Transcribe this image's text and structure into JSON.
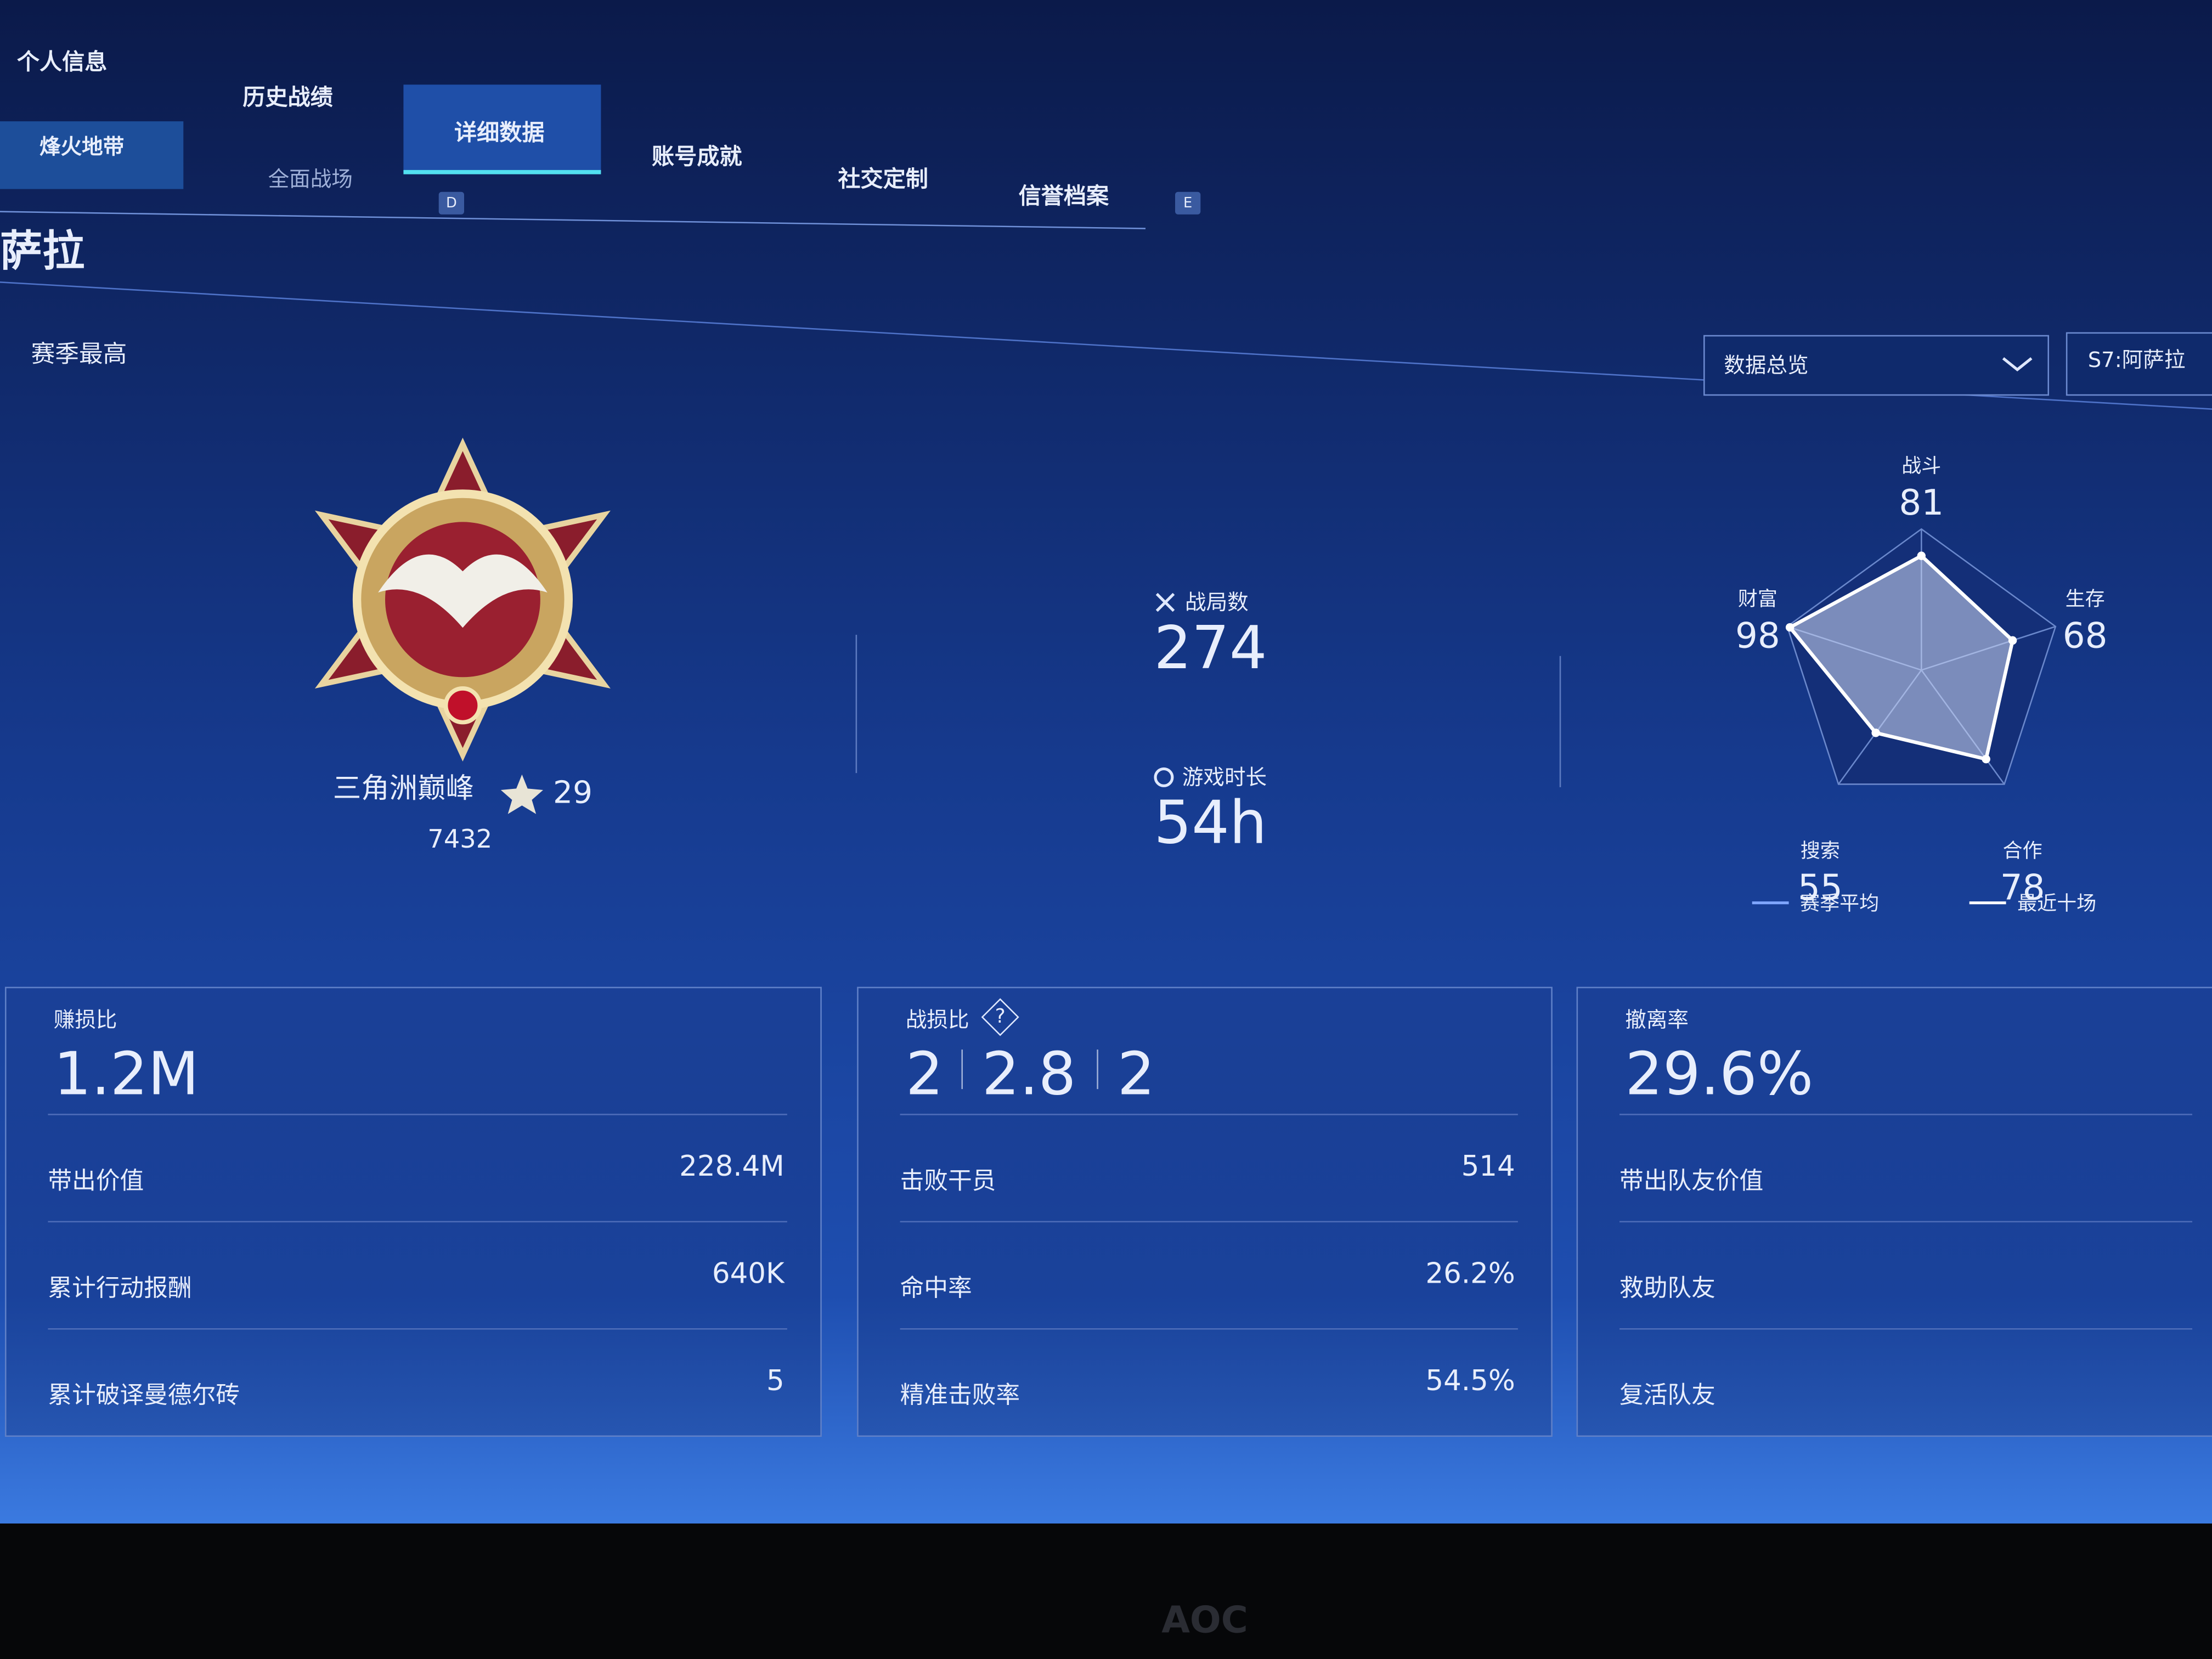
{
  "top_tabs": [
    "个人信息",
    "历史战绩",
    "详细数据",
    "账号成就",
    "社交定制",
    "信誉档案"
  ],
  "tab_keys": [
    "D",
    "E"
  ],
  "mode_tabs": [
    "烽火地带",
    "全面战场"
  ],
  "map_title": "萨拉",
  "season_best_label": "赛季最高",
  "dropdown": "数据总览",
  "season": "S7:阿萨拉",
  "rank": {
    "name": "三角洲巅峰",
    "stars": 29,
    "score": 7432
  },
  "summary": [
    {
      "label": "战局数",
      "value": 274
    },
    {
      "label": "游戏时长",
      "value": "54h"
    }
  ],
  "radar": {
    "rlim": [
      0,
      100
    ],
    "axes": [
      {
        "label": "战斗",
        "value": 81
      },
      {
        "label": "生存",
        "value": 68
      },
      {
        "label": "合作",
        "value": 78
      },
      {
        "label": "搜索",
        "value": 55
      },
      {
        "label": "财富",
        "value": 98
      }
    ],
    "legend": [
      "赛季平均",
      "最近十场"
    ]
  },
  "panels": [
    {
      "title": "赚损比",
      "headline": [
        "1.2M"
      ],
      "rows": [
        {
          "label": "带出价值",
          "value": "228.4M"
        },
        {
          "label": "累计行动报酬",
          "value": "640K"
        },
        {
          "label": "累计破译曼德尔砖",
          "value": 5
        }
      ]
    },
    {
      "title": "战损比",
      "help": "?",
      "headline": [
        2,
        2.8,
        2
      ],
      "rows": [
        {
          "label": "击败干员",
          "value": 514
        },
        {
          "label": "命中率",
          "value": "26.2%"
        },
        {
          "label": "精准击败率",
          "value": "54.5%"
        }
      ]
    },
    {
      "title": "撤离率",
      "headline": [
        "29.6%"
      ],
      "rows": [
        {
          "label": "带出队友价值"
        },
        {
          "label": "救助队友"
        },
        {
          "label": "复活队友"
        }
      ]
    }
  ],
  "monitor_brand": "AOC"
}
